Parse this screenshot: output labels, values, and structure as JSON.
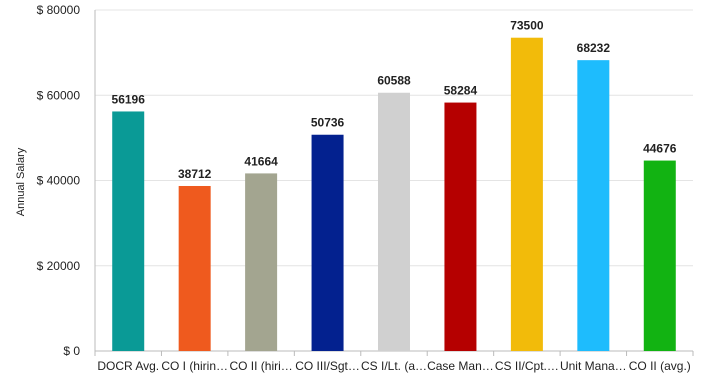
{
  "chart_data": {
    "type": "bar",
    "title": "",
    "xlabel": "",
    "ylabel": "Annual Salary",
    "ylim": [
      0,
      80000
    ],
    "yticks": [
      0,
      20000,
      40000,
      60000,
      80000
    ],
    "ytick_labels": [
      "$ 0",
      "$ 20000",
      "$ 40000",
      "$ 60000",
      "$ 80000"
    ],
    "grid": "horizontal",
    "legend": "none",
    "categories": [
      "DOCR Avg.",
      "CO I (hirin…",
      "CO II (hiri…",
      "CO III/Sgt…",
      "CS I/Lt. (a…",
      "Case Man…",
      "CS II/Cpt.…",
      "Unit Mana…",
      "CO II (avg.)"
    ],
    "values": [
      56196,
      38712,
      41664,
      50736,
      60588,
      58284,
      73500,
      68232,
      44676
    ],
    "value_labels": [
      "56196",
      "38712",
      "41664",
      "50736",
      "60588",
      "58284",
      "73500",
      "68232",
      "44676"
    ],
    "colors": [
      "#0a9a96",
      "#ef5a1e",
      "#a3a590",
      "#03218f",
      "#d0d0d0",
      "#b50000",
      "#f2bb0a",
      "#1ebcfd",
      "#12b312"
    ]
  }
}
